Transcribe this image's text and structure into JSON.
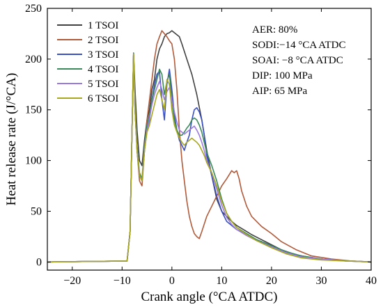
{
  "chart_data": {
    "type": "line",
    "title": "",
    "xlabel": "Crank angle (°CA ATDC)",
    "ylabel": "Heat release rate (J/°CA)",
    "xlim": [
      -25,
      40
    ],
    "ylim": [
      -8,
      250
    ],
    "xticks": [
      -20,
      -10,
      0,
      10,
      20,
      30,
      40
    ],
    "yticks": [
      0,
      50,
      100,
      150,
      200,
      250
    ],
    "grid": false,
    "legend_placement": "top-left",
    "annotations": [
      "AER: 80%",
      "SODI:−14 °CA ATDC",
      "SOAI:  −8 °CA ATDC",
      "DIP: 100 MPa",
      "AIP: 65 MPa"
    ],
    "series": [
      {
        "name": "1 TSOI",
        "color": "#404040",
        "x": [
          -25,
          -9,
          -8.4,
          -8,
          -7.7,
          -7.4,
          -7,
          -6.5,
          -6,
          -5.5,
          -5,
          -4.5,
          -4,
          -3.5,
          -3,
          -2.5,
          -2,
          -1.5,
          -1,
          -0.5,
          0,
          0.5,
          1,
          1.5,
          2,
          3,
          4,
          5,
          6,
          7,
          8,
          9,
          10,
          11,
          12,
          13,
          14,
          15,
          16,
          18,
          20,
          22,
          25,
          28,
          32,
          36,
          40
        ],
        "y": [
          0,
          1,
          30,
          130,
          206,
          170,
          130,
          100,
          95,
          120,
          140,
          150,
          170,
          180,
          200,
          210,
          215,
          222,
          225,
          226,
          228,
          226,
          224,
          222,
          215,
          200,
          185,
          165,
          140,
          110,
          85,
          62,
          50,
          45,
          40,
          36,
          33,
          30,
          27,
          22,
          17,
          12,
          7,
          4,
          2,
          1,
          0
        ]
      },
      {
        "name": "2 TSOI",
        "color": "#b05a3a",
        "x": [
          -25,
          -9,
          -8.4,
          -8,
          -7.7,
          -7.4,
          -7,
          -6.5,
          -6,
          -5.5,
          -5,
          -4.5,
          -4,
          -3.5,
          -3,
          -2.5,
          -2,
          -1.5,
          -1,
          -0.5,
          0,
          0.5,
          1,
          1.5,
          2,
          2.5,
          3,
          3.5,
          4,
          4.5,
          5,
          5.5,
          6,
          7,
          8,
          9,
          10,
          11,
          12,
          12.5,
          13,
          13.5,
          14,
          15,
          16,
          18,
          20,
          22,
          25,
          28,
          32,
          36,
          40
        ],
        "y": [
          0,
          1,
          30,
          130,
          205,
          150,
          110,
          80,
          75,
          110,
          140,
          160,
          180,
          200,
          215,
          222,
          228,
          225,
          222,
          218,
          215,
          200,
          170,
          130,
          100,
          80,
          60,
          45,
          35,
          28,
          25,
          23,
          30,
          45,
          55,
          65,
          75,
          82,
          90,
          88,
          90,
          82,
          70,
          55,
          45,
          35,
          28,
          20,
          12,
          6,
          3,
          1,
          0
        ]
      },
      {
        "name": "3 TSOI",
        "color": "#3a4fc0",
        "x": [
          -25,
          -9,
          -8.4,
          -8,
          -7.7,
          -7.4,
          -7,
          -6.5,
          -6,
          -5.5,
          -5,
          -4.5,
          -4,
          -3.5,
          -3,
          -2.5,
          -2,
          -1.5,
          -1,
          -0.5,
          0,
          0.5,
          1,
          1.5,
          2,
          2.5,
          3,
          3.5,
          4,
          4.5,
          5,
          5.5,
          6,
          6.5,
          7,
          8,
          9,
          10,
          11,
          12,
          13,
          15,
          17,
          20,
          23,
          26,
          30,
          35,
          40
        ],
        "y": [
          0,
          1,
          30,
          130,
          204,
          150,
          110,
          85,
          80,
          110,
          130,
          140,
          160,
          175,
          185,
          188,
          160,
          140,
          175,
          190,
          170,
          145,
          130,
          120,
          115,
          110,
          118,
          125,
          140,
          150,
          152,
          148,
          140,
          125,
          105,
          85,
          65,
          50,
          40,
          36,
          32,
          27,
          22,
          16,
          10,
          6,
          3,
          1,
          0
        ]
      },
      {
        "name": "4 TSOI",
        "color": "#3a8a5a",
        "x": [
          -25,
          -9,
          -8.4,
          -8,
          -7.7,
          -7.4,
          -7,
          -6.5,
          -6,
          -5.5,
          -5,
          -4.5,
          -4,
          -3.5,
          -3,
          -2.5,
          -2,
          -1.5,
          -1,
          -0.5,
          0,
          0.5,
          1,
          1.5,
          2,
          2.5,
          3,
          3.5,
          4,
          4.5,
          5,
          5.5,
          6,
          6.5,
          7,
          8,
          9,
          10,
          11,
          12,
          13,
          15,
          17,
          20,
          23,
          26,
          30,
          35,
          40
        ],
        "y": [
          0,
          1,
          30,
          130,
          206,
          155,
          115,
          88,
          82,
          115,
          135,
          145,
          160,
          170,
          180,
          190,
          185,
          165,
          178,
          185,
          160,
          140,
          130,
          125,
          125,
          128,
          132,
          135,
          140,
          142,
          140,
          135,
          128,
          118,
          108,
          95,
          80,
          62,
          48,
          40,
          34,
          28,
          22,
          16,
          10,
          6,
          3,
          1,
          0
        ]
      },
      {
        "name": "5 TSOI",
        "color": "#9a7ae0",
        "x": [
          -25,
          -9,
          -8.4,
          -8,
          -7.7,
          -7.4,
          -7,
          -6.5,
          -6,
          -5.5,
          -5,
          -4.5,
          -4,
          -3.5,
          -3,
          -2.5,
          -2,
          -1.5,
          -1,
          -0.5,
          0,
          0.5,
          1,
          1.5,
          2,
          2.5,
          3,
          3.5,
          4,
          4.5,
          5,
          5.5,
          6,
          6.5,
          7,
          8,
          9,
          10,
          11,
          12,
          13,
          15,
          17,
          20,
          23,
          26,
          30,
          35,
          40
        ],
        "y": [
          0,
          1,
          30,
          130,
          205,
          150,
          112,
          86,
          80,
          112,
          130,
          142,
          155,
          165,
          172,
          178,
          170,
          160,
          168,
          172,
          160,
          148,
          138,
          130,
          128,
          126,
          128,
          130,
          132,
          134,
          130,
          125,
          118,
          110,
          100,
          88,
          72,
          56,
          44,
          37,
          32,
          26,
          21,
          15,
          9,
          5,
          3,
          1,
          0
        ]
      },
      {
        "name": "6 TSOI",
        "color": "#a8a820",
        "x": [
          -25,
          -9,
          -8.4,
          -8,
          -7.7,
          -7.4,
          -7,
          -6.5,
          -6,
          -5.5,
          -5,
          -4.5,
          -4,
          -3.5,
          -3,
          -2.5,
          -2,
          -1.5,
          -1,
          -0.5,
          0,
          0.5,
          1,
          1.5,
          2,
          2.5,
          3,
          3.5,
          4,
          4.5,
          5,
          5.5,
          6,
          6.5,
          7,
          8,
          9,
          10,
          11,
          12,
          13,
          15,
          17,
          20,
          23,
          26,
          30,
          35,
          40
        ],
        "y": [
          0,
          1,
          30,
          130,
          205,
          150,
          110,
          85,
          80,
          110,
          128,
          135,
          145,
          155,
          165,
          170,
          160,
          150,
          180,
          175,
          150,
          135,
          128,
          122,
          118,
          115,
          118,
          120,
          122,
          120,
          118,
          115,
          110,
          105,
          98,
          88,
          75,
          60,
          48,
          40,
          34,
          27,
          21,
          14,
          8,
          4,
          2,
          1,
          0
        ]
      }
    ]
  }
}
